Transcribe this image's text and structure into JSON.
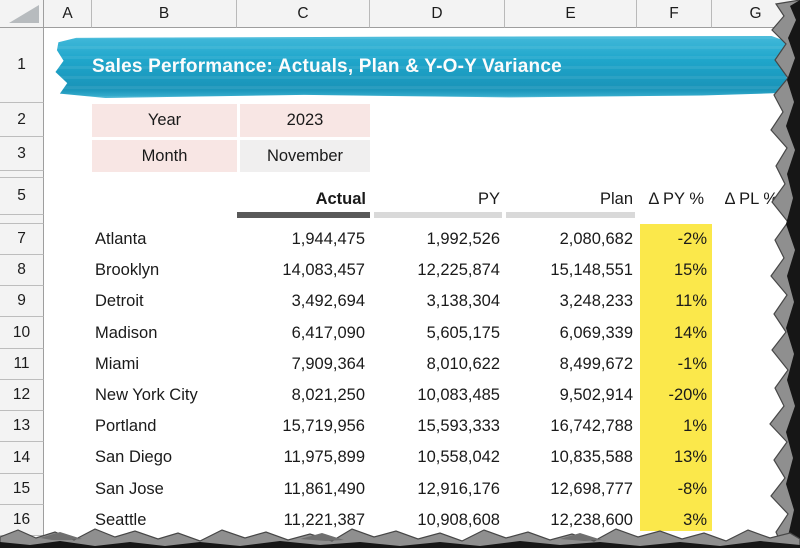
{
  "columns": [
    "A",
    "B",
    "C",
    "D",
    "E",
    "F",
    "G"
  ],
  "rows": [
    "1",
    "2",
    "3",
    "",
    "5",
    "",
    "7",
    "8",
    "9",
    "10",
    "11",
    "12",
    "13",
    "14",
    "15",
    "16"
  ],
  "banner": {
    "title": "Sales Performance: Actuals, Plan & Y-O-Y Variance"
  },
  "params": {
    "year_label": "Year",
    "year_value": "2023",
    "month_label": "Month",
    "month_value": "November"
  },
  "table": {
    "headers": {
      "actual": "Actual",
      "py": "PY",
      "plan": "Plan",
      "delta_py": "Δ PY %",
      "delta_pl": "Δ PL %"
    },
    "rows": [
      {
        "city": "Atlanta",
        "actual": "1,944,475",
        "py": "1,992,526",
        "plan": "2,080,682",
        "delta_py": "-2%"
      },
      {
        "city": "Brooklyn",
        "actual": "14,083,457",
        "py": "12,225,874",
        "plan": "15,148,551",
        "delta_py": "15%"
      },
      {
        "city": "Detroit",
        "actual": "3,492,694",
        "py": "3,138,304",
        "plan": "3,248,233",
        "delta_py": "11%"
      },
      {
        "city": "Madison",
        "actual": "6,417,090",
        "py": "5,605,175",
        "plan": "6,069,339",
        "delta_py": "14%"
      },
      {
        "city": "Miami",
        "actual": "7,909,364",
        "py": "8,010,622",
        "plan": "8,499,672",
        "delta_py": "-1%"
      },
      {
        "city": "New York City",
        "actual": "8,021,250",
        "py": "10,083,485",
        "plan": "9,502,914",
        "delta_py": "-20%"
      },
      {
        "city": "Portland",
        "actual": "15,719,956",
        "py": "15,593,333",
        "plan": "16,742,788",
        "delta_py": "1%"
      },
      {
        "city": "San Diego",
        "actual": "11,975,899",
        "py": "10,558,042",
        "plan": "10,835,588",
        "delta_py": "13%"
      },
      {
        "city": "San Jose",
        "actual": "11,861,490",
        "py": "12,916,176",
        "plan": "12,698,777",
        "delta_py": "-8%"
      },
      {
        "city": "Seattle",
        "actual": "11,221,387",
        "py": "10,908,608",
        "plan": "12,238,600",
        "delta_py": "3%"
      }
    ]
  },
  "icons": {
    "select_all_corner": "triangle"
  },
  "colors": {
    "banner_teal": "#1FA6CB",
    "param_pink": "#F8E6E4",
    "param_gray": "#F0EFEF",
    "highlight_yellow": "#FBE84B",
    "underline_dark": "#595959",
    "underline_light": "#D9D9D9"
  }
}
